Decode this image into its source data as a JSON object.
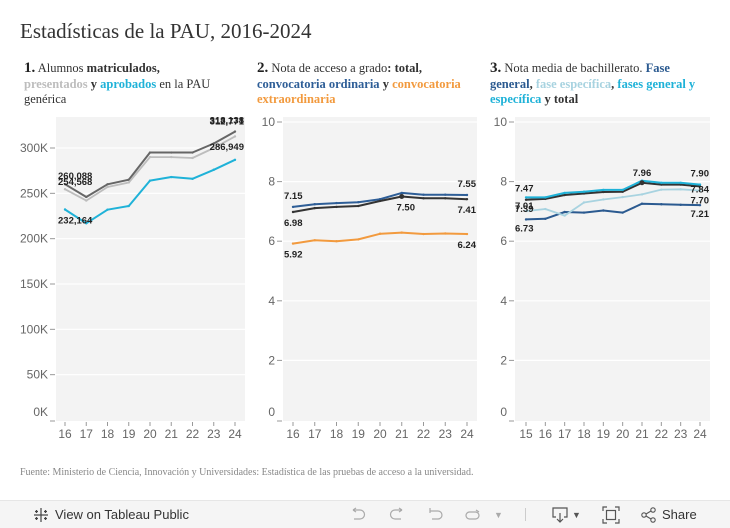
{
  "title": "Estadísticas de la PAU, 2016-2024",
  "source": "Fuente: Ministerio de Ciencia, Innovación y Universidades: Estadística de las pruebas de acceso a la universidad.",
  "colors": {
    "matriculados": "#666666",
    "presentados": "#bdbdbd",
    "aprobados": "#1fb2d8",
    "ordinaria": "#2e5e97",
    "total": "#333333",
    "extraordinaria": "#f29a3e",
    "fase_general": "#2b5a90",
    "fase_especifica": "#a8d3e0",
    "fases_general_especifica": "#1fb2d8",
    "plot_bg": "#f3f3f3"
  },
  "headers": {
    "c1": {
      "num": "1.",
      "t1": "Alumnos ",
      "b1": "matriculados,",
      "b2": "presentados",
      "t2": " y ",
      "b3": "aprobados",
      "t3": " en la PAU genérica"
    },
    "c2": {
      "num": "2.",
      "t1": "Nota de acceso a grado",
      "b1": ": total,",
      "b2": "convocatoria ordinaria",
      "t2": " y ",
      "b3": "convocatoria extraordinaria"
    },
    "c3": {
      "num": "3.",
      "t1": "Nota media de bachillerato. ",
      "b1": "Fase general",
      "t2": ", ",
      "b2": "fase específica",
      "t3": ", ",
      "b3": "fases general y específica",
      "t4": " y ",
      "b4": "total"
    }
  },
  "toolbar": {
    "view_label": "View on Tableau Public",
    "share_label": "Share",
    "icons": [
      "tableau-logo-icon",
      "undo-icon",
      "redo-icon",
      "revert-icon",
      "refresh-icon",
      "dropdown-icon",
      "download-icon",
      "fullscreen-icon",
      "share-icon"
    ]
  },
  "chart_data": [
    {
      "type": "line",
      "title": "Alumnos matriculados, presentados y aprobados en la PAU genérica",
      "xlabel": "",
      "ylabel": "",
      "x": [
        "16",
        "17",
        "18",
        "19",
        "20",
        "21",
        "22",
        "23",
        "24"
      ],
      "ylim": [
        0,
        330000
      ],
      "yticks": [
        0,
        50000,
        100000,
        150000,
        200000,
        250000,
        300000
      ],
      "ytick_labels": [
        "0K",
        "50K",
        "100K",
        "150K",
        "200K",
        "250K",
        "300K"
      ],
      "grid": true,
      "series": [
        {
          "name": "Matriculados",
          "color_key": "matriculados",
          "values": [
            260088,
            246000,
            260000,
            265000,
            295000,
            295000,
            295000,
            305000,
            318138
          ],
          "labels": {
            "0": "260,088",
            "8": "318,138"
          }
        },
        {
          "name": "Presentados",
          "color_key": "presentados",
          "values": [
            254568,
            242000,
            257000,
            262000,
            290000,
            290000,
            289000,
            300000,
            312771
          ],
          "labels": {
            "0": "254,568",
            "8": "312,771"
          }
        },
        {
          "name": "Aprobados",
          "color_key": "aprobados",
          "values": [
            232164,
            217000,
            232000,
            236000,
            264000,
            268000,
            266000,
            276000,
            286949
          ],
          "labels": {
            "0": "232,164",
            "8": "286,949"
          }
        }
      ]
    },
    {
      "type": "line",
      "title": "Nota de acceso a grado: total, convocatoria ordinaria y convocatoria extraordinaria",
      "xlabel": "",
      "ylabel": "",
      "x": [
        "16",
        "17",
        "18",
        "19",
        "20",
        "21",
        "22",
        "23",
        "24"
      ],
      "ylim": [
        0,
        10
      ],
      "yticks": [
        0,
        2,
        4,
        6,
        8,
        10
      ],
      "ytick_labels": [
        "0",
        "2",
        "4",
        "6",
        "8",
        "10"
      ],
      "grid": true,
      "series": [
        {
          "name": "Convocatoria ordinaria",
          "color_key": "ordinaria",
          "values": [
            7.15,
            7.24,
            7.28,
            7.31,
            7.41,
            7.62,
            7.56,
            7.56,
            7.55
          ],
          "labels": {
            "0": "7.15",
            "8": "7.55"
          }
        },
        {
          "name": "Total",
          "color_key": "total",
          "values": [
            6.98,
            7.11,
            7.15,
            7.18,
            7.35,
            7.5,
            7.44,
            7.44,
            7.41
          ],
          "labels": {
            "0": "6.98",
            "5": "7.50",
            "8": "7.41"
          }
        },
        {
          "name": "Convocatoria extraordinaria",
          "color_key": "extraordinaria",
          "values": [
            5.92,
            6.03,
            6.0,
            6.06,
            6.25,
            6.29,
            6.24,
            6.26,
            6.24
          ],
          "labels": {
            "0": "5.92",
            "8": "6.24"
          }
        }
      ]
    },
    {
      "type": "line",
      "title": "Nota media de bachillerato. Fase general, fase específica, fases general y específica y total",
      "xlabel": "",
      "ylabel": "",
      "x": [
        "15",
        "16",
        "17",
        "18",
        "19",
        "20",
        "21",
        "22",
        "23",
        "24"
      ],
      "ylim": [
        0,
        10
      ],
      "yticks": [
        0,
        2,
        4,
        6,
        8,
        10
      ],
      "ytick_labels": [
        "0",
        "2",
        "4",
        "6",
        "8",
        "10"
      ],
      "grid": true,
      "series": [
        {
          "name": "Fase general",
          "color_key": "fase_general",
          "values": [
            6.73,
            6.75,
            6.98,
            6.96,
            7.03,
            6.96,
            7.26,
            7.24,
            7.22,
            7.21
          ],
          "labels": {
            "0": "6.73",
            "9": "7.21"
          }
        },
        {
          "name": "Fase específica",
          "color_key": "fase_especifica",
          "values": [
            7.01,
            7.08,
            6.86,
            7.3,
            7.4,
            7.48,
            7.57,
            7.73,
            7.74,
            7.7
          ],
          "labels": {
            "0": "7.01",
            "9": "7.70"
          }
        },
        {
          "name": "Total",
          "color_key": "total",
          "values": [
            7.39,
            7.42,
            7.55,
            7.6,
            7.65,
            7.66,
            7.96,
            7.9,
            7.9,
            7.84
          ],
          "labels": {
            "0": "7.39",
            "6": "7.96",
            "9": "7.84"
          }
        },
        {
          "name": "Fases general y específica",
          "color_key": "fases_general_especifica",
          "values": [
            7.47,
            7.47,
            7.62,
            7.66,
            7.72,
            7.72,
            8.03,
            7.96,
            7.96,
            7.9
          ],
          "labels": {
            "0": "7.47",
            "9": "7.90"
          }
        }
      ]
    }
  ]
}
